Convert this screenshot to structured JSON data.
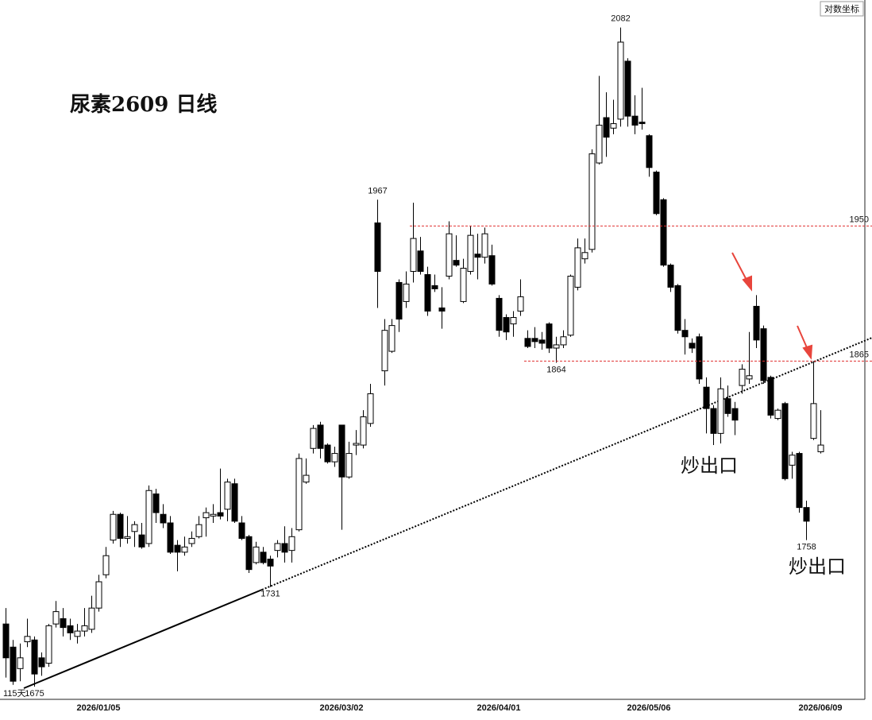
{
  "chart_data": {
    "type": "candlestick",
    "title": "尿素2609 日线",
    "scale_label": "对数坐标",
    "log_scale": true,
    "count_label": "115天",
    "annotations": [
      "炒出口",
      "炒出口"
    ],
    "up_color": "#ffffff",
    "down_color": "#000000",
    "level_color": "#e03030",
    "annotation_color": "#e8453c",
    "ylim": [
      1668,
      2101
    ],
    "levels": [
      1950,
      1865
    ],
    "categories": [
      null,
      null,
      null,
      null,
      null,
      null,
      null,
      null,
      null,
      null,
      null,
      null,
      null,
      "2026/01/05",
      null,
      null,
      null,
      null,
      null,
      null,
      null,
      null,
      null,
      null,
      null,
      null,
      null,
      null,
      null,
      null,
      null,
      null,
      null,
      null,
      null,
      null,
      null,
      null,
      null,
      null,
      null,
      null,
      null,
      null,
      null,
      null,
      null,
      "2026/03/02",
      null,
      null,
      null,
      null,
      null,
      null,
      null,
      null,
      null,
      null,
      null,
      null,
      null,
      null,
      null,
      null,
      null,
      null,
      null,
      null,
      null,
      "2026/04/01",
      null,
      null,
      null,
      null,
      null,
      null,
      null,
      null,
      null,
      null,
      null,
      null,
      null,
      null,
      null,
      null,
      null,
      null,
      null,
      null,
      "2026/05/06",
      null,
      null,
      null,
      null,
      null,
      null,
      null,
      null,
      null,
      null,
      null,
      null,
      null,
      null,
      null,
      null,
      null,
      null,
      null,
      null,
      null,
      null,
      null,
      "2026/06/09"
    ],
    "open": [
      1710,
      1697,
      1685,
      1700,
      1701,
      1691,
      1688,
      1710,
      1713,
      1709,
      1703,
      1706,
      1707,
      1719,
      1738,
      1758,
      1773,
      1759,
      1763,
      1761,
      1756,
      1785,
      1773,
      1768,
      1755,
      1751,
      1756,
      1760,
      1771,
      1772,
      1774,
      1776,
      1791,
      1768,
      1760,
      1745,
      1751,
      1747,
      1752,
      1756,
      1752,
      1764,
      1792,
      1812,
      1826,
      1814,
      1804,
      1826,
      1795,
      1814,
      1814,
      1827,
      1952,
      1859,
      1871,
      1914,
      1902,
      1921,
      1934,
      1919,
      1912,
      1898,
      1918,
      1928,
      1902,
      1921,
      1932,
      1930,
      1931,
      1904,
      1892,
      1888,
      1896,
      1879,
      1879,
      1878,
      1888,
      1873,
      1875,
      1881,
      1911,
      1929,
      1935,
      1991,
      2021,
      2014,
      2020,
      2059,
      2022,
      2018,
      2009,
      1985,
      1967,
      1925,
      1912,
      1884,
      1876,
      1880,
      1849,
      1836,
      1821,
      1842,
      1836,
      1850,
      1854,
      1899,
      1885,
      1855,
      1830,
      1839,
      1802,
      1809,
      1777,
      1818,
      1810
    ],
    "high": [
      1719,
      1701,
      1699,
      1713,
      1703,
      1694,
      1710,
      1723,
      1719,
      1713,
      1710,
      1719,
      1726,
      1738,
      1754,
      1775,
      1774,
      1772,
      1769,
      1768,
      1790,
      1788,
      1779,
      1772,
      1758,
      1760,
      1763,
      1772,
      1777,
      1779,
      1800,
      1794,
      1794,
      1772,
      1761,
      1757,
      1754,
      1749,
      1758,
      1766,
      1765,
      1809,
      1806,
      1826,
      1828,
      1815,
      1813,
      1826,
      1816,
      1823,
      1835,
      1851,
      1967,
      1891,
      1891,
      1916,
      1921,
      1965,
      1943,
      1924,
      1919,
      1911,
      1953,
      1944,
      1929,
      1950,
      1945,
      1949,
      1938,
      1906,
      1894,
      1896,
      1916,
      1884,
      1886,
      1883,
      1889,
      1880,
      1884,
      1919,
      1942,
      1942,
      2000,
      2049,
      2038,
      2033,
      2082,
      2061,
      2036,
      2041,
      2010,
      1986,
      1968,
      1926,
      1913,
      1891,
      1879,
      1882,
      1855,
      1838,
      1855,
      1850,
      1840,
      1863,
      1883,
      1906,
      1887,
      1856,
      1836,
      1840,
      1810,
      1810,
      1781,
      1865,
      1835
    ],
    "low": [
      1680,
      1676,
      1678,
      1697,
      1675,
      1681,
      1686,
      1708,
      1703,
      1701,
      1699,
      1703,
      1705,
      1717,
      1736,
      1756,
      1754,
      1756,
      1754,
      1753,
      1754,
      1768,
      1765,
      1750,
      1740,
      1749,
      1754,
      1759,
      1760,
      1768,
      1770,
      1769,
      1768,
      1758,
      1739,
      1744,
      1744,
      1731,
      1748,
      1745,
      1745,
      1763,
      1791,
      1809,
      1806,
      1803,
      1801,
      1764,
      1794,
      1808,
      1812,
      1825,
      1898,
      1850,
      1870,
      1883,
      1898,
      1914,
      1919,
      1893,
      1908,
      1885,
      1916,
      1924,
      1901,
      1919,
      1916,
      1926,
      1912,
      1880,
      1878,
      1880,
      1893,
      1873,
      1873,
      1872,
      1870,
      1864,
      1873,
      1880,
      1909,
      1926,
      1933,
      1990,
      1995,
      2010,
      2015,
      2015,
      2010,
      2013,
      1982,
      1957,
      1924,
      1908,
      1882,
      1869,
      1870,
      1851,
      1821,
      1814,
      1815,
      1831,
      1820,
      1845,
      1851,
      1873,
      1851,
      1830,
      1829,
      1793,
      1794,
      1774,
      1758,
      1817,
      1809
    ],
    "close": [
      1691,
      1678,
      1691,
      1703,
      1682,
      1686,
      1709,
      1717,
      1708,
      1705,
      1706,
      1709,
      1719,
      1734,
      1749,
      1773,
      1759,
      1760,
      1767,
      1754,
      1787,
      1774,
      1768,
      1751,
      1751,
      1754,
      1759,
      1767,
      1774,
      1773,
      1772,
      1792,
      1769,
      1759,
      1741,
      1754,
      1745,
      1743,
      1756,
      1751,
      1760,
      1806,
      1796,
      1824,
      1812,
      1804,
      1809,
      1795,
      1809,
      1815,
      1831,
      1845,
      1921,
      1884,
      1887,
      1891,
      1913,
      1942,
      1921,
      1896,
      1910,
      1896,
      1945,
      1925,
      1923,
      1944,
      1930,
      1945,
      1913,
      1884,
      1883,
      1892,
      1905,
      1874,
      1877,
      1876,
      1873,
      1875,
      1880,
      1918,
      1936,
      1933,
      1997,
      2016,
      2008,
      2017,
      2072,
      2022,
      2016,
      2017,
      1988,
      1958,
      1925,
      1911,
      1884,
      1880,
      1873,
      1854,
      1836,
      1821,
      1848,
      1833,
      1829,
      1860,
      1856,
      1878,
      1853,
      1832,
      1835,
      1794,
      1808,
      1777,
      1769,
      1839,
      1814
    ]
  }
}
